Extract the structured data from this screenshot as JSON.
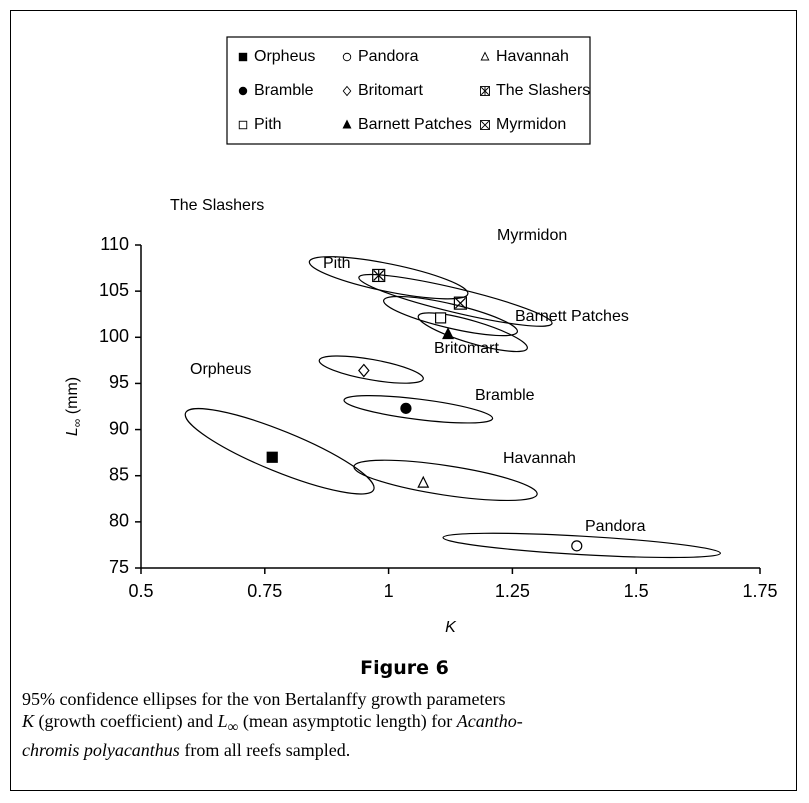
{
  "chart_data": {
    "type": "scatter",
    "x_label": "K",
    "y_label": [
      "L",
      "∞",
      " (mm)"
    ],
    "xlim": [
      0.5,
      1.75
    ],
    "xticks": [
      0.5,
      0.75,
      1,
      1.25,
      1.5,
      1.75
    ],
    "ylim": [
      75,
      110
    ],
    "yticks": [
      75,
      80,
      85,
      90,
      95,
      100,
      105,
      110
    ],
    "color": "#000000",
    "series": [
      {
        "name": "Orpheus",
        "marker": "square-filled",
        "x": 0.765,
        "y": 87.0,
        "ellipse": {
          "x1": 0.59,
          "y1": 91.8,
          "x2": 0.97,
          "y2": 83.5,
          "minor": 2.2
        }
      },
      {
        "name": "Pandora",
        "marker": "circle-open",
        "x": 1.38,
        "y": 77.4,
        "ellipse": {
          "x1": 1.11,
          "y1": 78.3,
          "x2": 1.67,
          "y2": 76.6,
          "minor": 1.0
        }
      },
      {
        "name": "Havannah",
        "marker": "triangle-open",
        "x": 1.07,
        "y": 84.2,
        "ellipse": {
          "x1": 0.93,
          "y1": 86.0,
          "x2": 1.3,
          "y2": 83.0,
          "minor": 1.6
        }
      },
      {
        "name": "Bramble",
        "marker": "circle-filled",
        "x": 1.035,
        "y": 92.3,
        "ellipse": {
          "x1": 0.91,
          "y1": 93.2,
          "x2": 1.21,
          "y2": 91.2,
          "minor": 1.1
        }
      },
      {
        "name": "Britomart",
        "marker": "diamond-open",
        "x": 0.95,
        "y": 96.4,
        "ellipse": {
          "x1": 0.86,
          "y1": 97.5,
          "x2": 1.07,
          "y2": 95.5,
          "minor": 1.1
        }
      },
      {
        "name": "The Slashers",
        "marker": "asterisk",
        "x": 0.98,
        "y": 106.7,
        "ellipse": {
          "x1": 0.84,
          "y1": 108.2,
          "x2": 1.16,
          "y2": 104.7,
          "minor": 1.5
        }
      },
      {
        "name": "Pith",
        "marker": "square-open",
        "x": 1.105,
        "y": 102.1,
        "ellipse": {
          "x1": 0.99,
          "y1": 104.0,
          "x2": 1.26,
          "y2": 100.6,
          "minor": 1.3
        }
      },
      {
        "name": "Barnett Patches",
        "marker": "triangle-filled",
        "x": 1.12,
        "y": 100.3,
        "ellipse": {
          "x1": 1.06,
          "y1": 102.3,
          "x2": 1.28,
          "y2": 98.8,
          "minor": 1.2
        }
      },
      {
        "name": "Myrmidon",
        "marker": "x",
        "x": 1.145,
        "y": 103.7,
        "ellipse": {
          "x1": 0.94,
          "y1": 106.5,
          "x2": 1.33,
          "y2": 101.5,
          "minor": 1.3
        }
      }
    ]
  },
  "figure_label": "Figure 6",
  "caption": [
    [
      "95% confidence ellipses for the von Bertalanffy growth parameters"
    ],
    [
      "K",
      " (growth coefficient) and ",
      "L",
      "∞",
      " (mean asymptotic length) for ",
      "Acantho-"
    ],
    [
      "chromis polyacanthus",
      " from all reefs sampled."
    ]
  ]
}
